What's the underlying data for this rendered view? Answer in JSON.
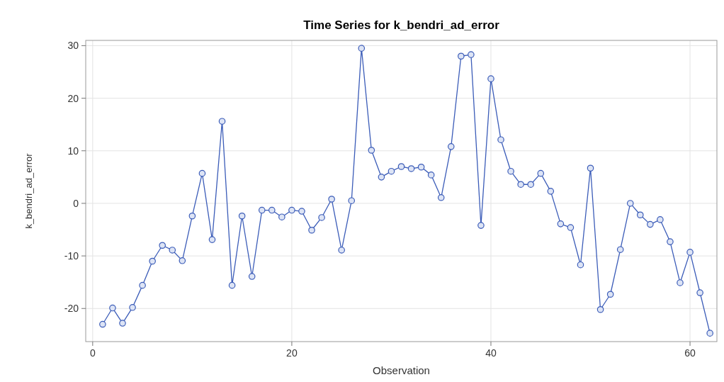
{
  "chart_data": {
    "type": "line",
    "title": "Time Series for k_bendri_ad_error",
    "xlabel": "Observation",
    "ylabel": "k_bendri_ad_error",
    "x": [
      1,
      2,
      3,
      4,
      5,
      6,
      7,
      8,
      9,
      10,
      11,
      12,
      13,
      14,
      15,
      16,
      17,
      18,
      19,
      20,
      21,
      22,
      23,
      24,
      25,
      26,
      27,
      28,
      29,
      30,
      31,
      32,
      33,
      34,
      35,
      36,
      37,
      38,
      39,
      40,
      41,
      42,
      43,
      44,
      45,
      46,
      47,
      48,
      49,
      50,
      51,
      52,
      53,
      54,
      55,
      56,
      57,
      58,
      59,
      60,
      61,
      62
    ],
    "series": [
      {
        "color": "#3b5cb8",
        "values": [
          -23.0,
          -19.9,
          -22.8,
          -19.8,
          -15.6,
          -11.0,
          -8.0,
          -8.9,
          -10.9,
          -2.4,
          5.7,
          -6.9,
          15.6,
          -15.6,
          -2.4,
          -13.9,
          -1.3,
          -1.3,
          -2.6,
          -1.3,
          -1.5,
          -5.1,
          -2.7,
          0.8,
          -8.9,
          0.5,
          29.5,
          10.1,
          5.0,
          6.1,
          7.0,
          6.6,
          6.9,
          5.4,
          1.1,
          10.8,
          28.0,
          28.3,
          -4.2,
          23.7,
          12.1,
          6.1,
          3.6,
          3.6,
          5.7,
          2.3,
          -3.9,
          -4.6,
          -11.7,
          6.7,
          -20.2,
          -17.3,
          -8.8,
          0.0,
          -2.2,
          -4.0,
          -3.1,
          -7.3,
          -15.1,
          -9.3,
          -17.0,
          -24.7
        ]
      }
    ],
    "xlim": [
      -0.7,
      62.7
    ],
    "ylim": [
      -26.3,
      31
    ],
    "xticks": [
      0,
      20,
      40,
      60
    ],
    "yticks": [
      -20,
      -10,
      0,
      10,
      20,
      30
    ],
    "grid": true,
    "marker": "circle",
    "line_style": "solid"
  }
}
